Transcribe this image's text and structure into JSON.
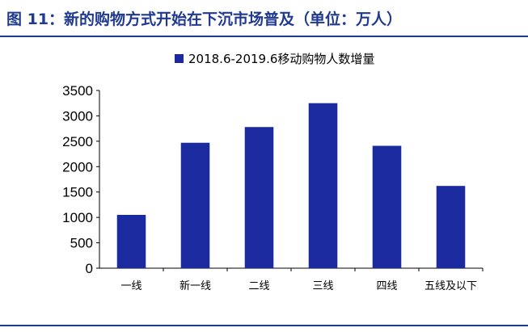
{
  "figure": {
    "title": "图 11：新的购物方式开始在下沉市场普及（单位：万人）"
  },
  "chart_data": {
    "type": "bar",
    "categories": [
      "一线",
      "新一线",
      "二线",
      "三线",
      "四线",
      "五线及以下"
    ],
    "series": [
      {
        "name": "2018.6-2019.6移动购物人数增量",
        "values": [
          1050,
          2470,
          2780,
          3250,
          2410,
          1620
        ],
        "color": "#1b2a9e"
      }
    ],
    "ylim": [
      0,
      3500
    ],
    "yticks": [
      "0",
      "500",
      "1000",
      "1500",
      "2000",
      "2500",
      "3000",
      "3500"
    ],
    "xlabel": "",
    "ylabel": "",
    "grid": false,
    "legend_position": "top"
  },
  "colors": {
    "title": "#1f3a8f",
    "rule": "#1f3a8f",
    "bar": "#1b2a9e",
    "axis": "#000000"
  }
}
